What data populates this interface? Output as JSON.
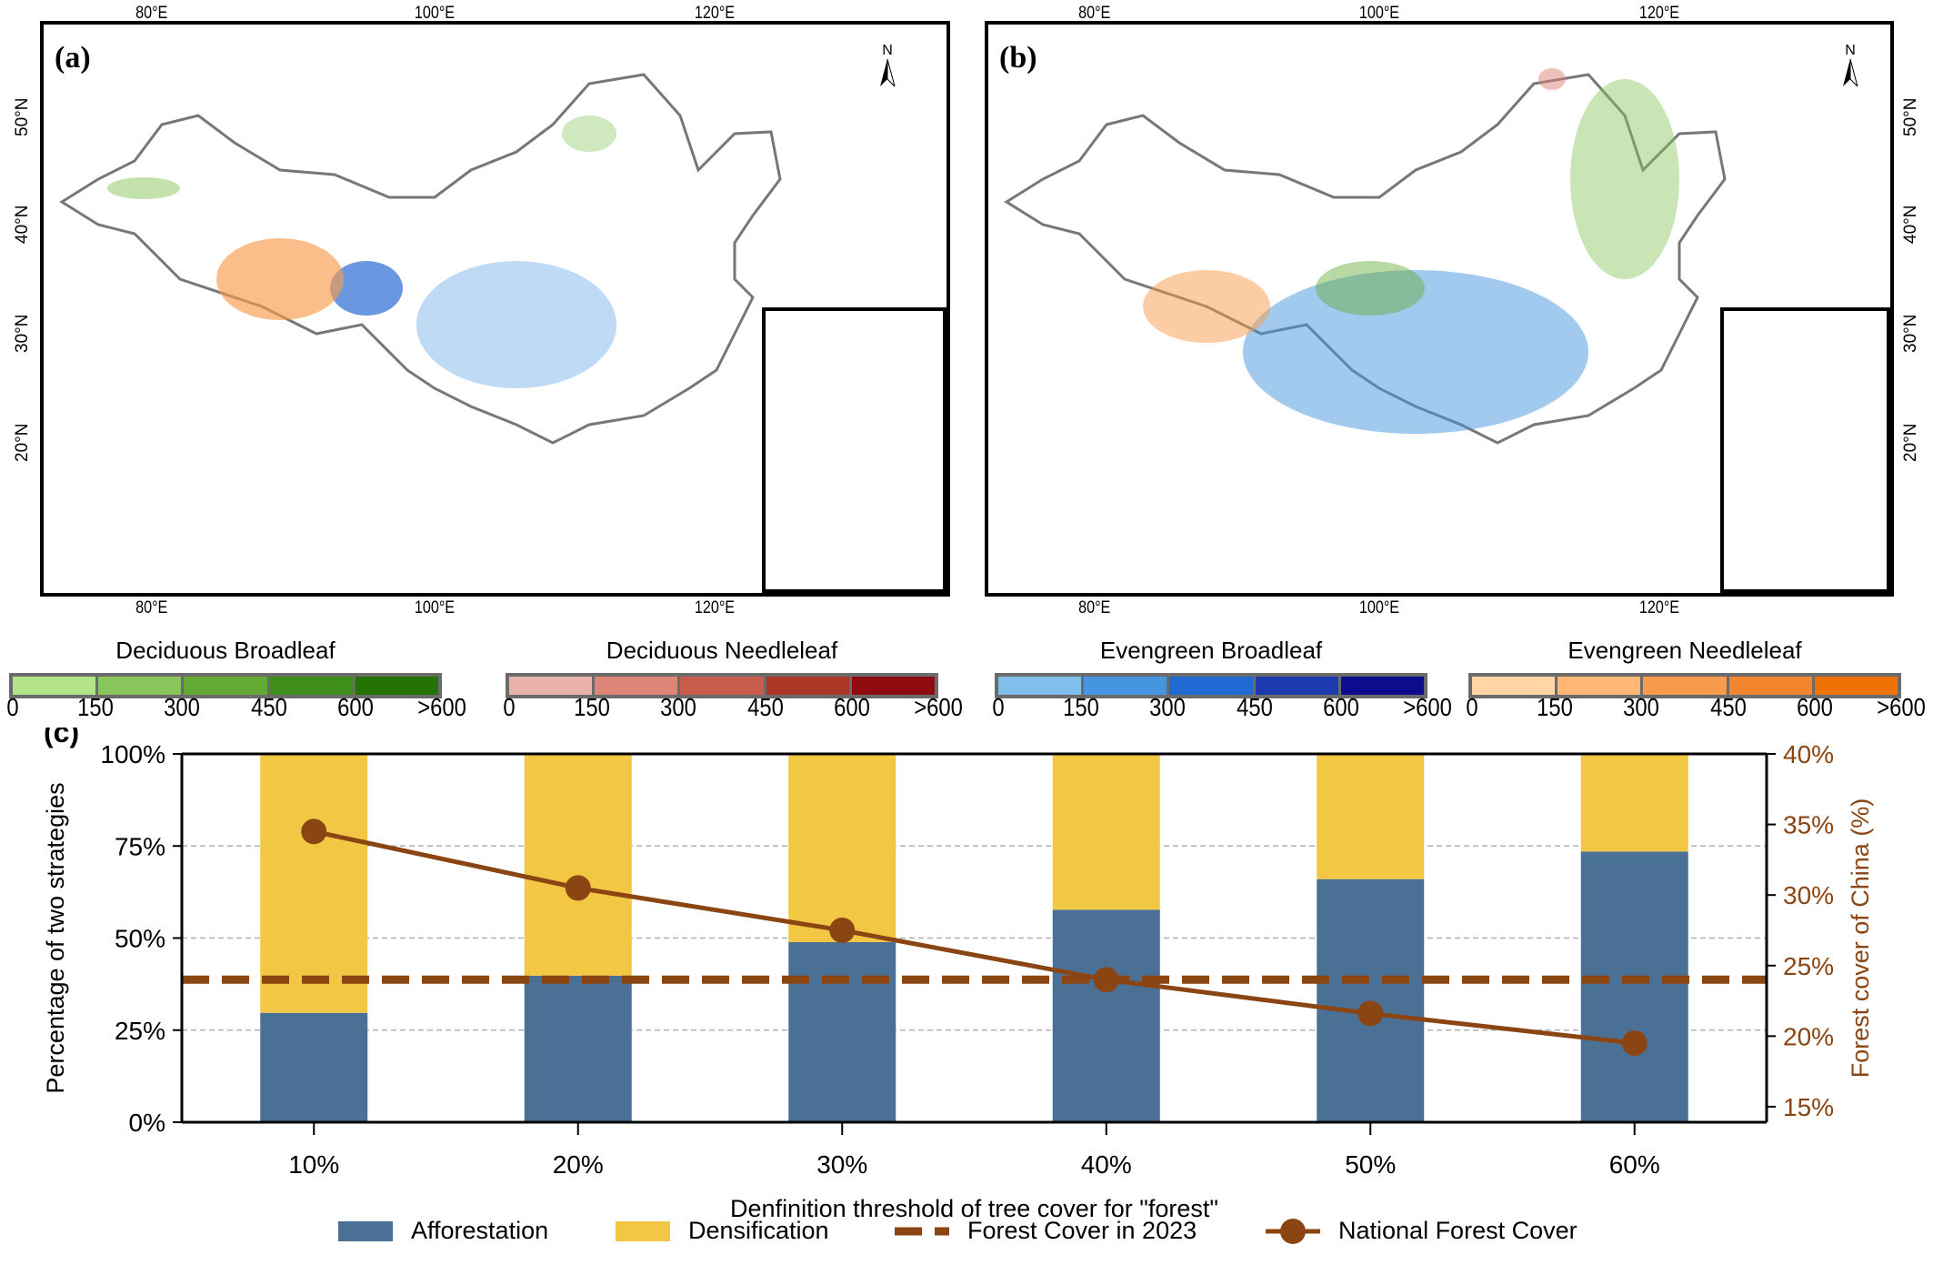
{
  "maps": [
    {
      "panel_label": "(a)",
      "lon_ticks": [
        "80°E",
        "100°E",
        "120°E"
      ],
      "lat_ticks": [
        "50°N",
        "40°N",
        "30°N",
        "20°N"
      ],
      "north_label": "N"
    },
    {
      "panel_label": "(b)",
      "lon_ticks": [
        "80°E",
        "100°E",
        "120°E"
      ],
      "lat_ticks": [
        "50°N",
        "40°N",
        "30°N",
        "20°N"
      ],
      "north_label": "N"
    }
  ],
  "map_legends": [
    {
      "title": "Deciduous Broadleaf",
      "colors": [
        "#b3e38b",
        "#88c55a",
        "#63aa35",
        "#3f8d1a",
        "#257204"
      ],
      "ticks": [
        "0",
        "150",
        "300",
        "450",
        "600",
        ">600"
      ]
    },
    {
      "title": "Deciduous Needleleaf",
      "colors": [
        "#eab3aa",
        "#dd8576",
        "#c85d4b",
        "#ad3726",
        "#8e0c0f"
      ],
      "ticks": [
        "0",
        "150",
        "300",
        "450",
        "600",
        ">600"
      ]
    },
    {
      "title": "Evengreen Broadleaf",
      "colors": [
        "#80bfec",
        "#4695e0",
        "#216ad3",
        "#1d3aae",
        "#0c0c8c"
      ],
      "ticks": [
        "0",
        "150",
        "300",
        "450",
        "600",
        ">600"
      ]
    },
    {
      "title": "Evengreen Needleleaf",
      "colors": [
        "#ffd5a4",
        "#ffb676",
        "#f99b4c",
        "#f4852f",
        "#ef7206"
      ],
      "ticks": [
        "0",
        "150",
        "300",
        "450",
        "600",
        ">600"
      ]
    }
  ],
  "colors": {
    "afforestation": "#4b7096",
    "densification": "#f2c744",
    "forest_line": "#8b4513",
    "right_axis": "#8b4513",
    "grid": "#b0b0b0"
  },
  "chart_data": {
    "type": "bar",
    "panel_label": "(c)",
    "categories": [
      "10%",
      "20%",
      "30%",
      "40%",
      "50%",
      "60%"
    ],
    "xlabel": "Denfinition threshold of tree cover for \"forest\"",
    "ylabel": "Percentage of two strategies",
    "ylabel_right": "Forest cover of China (%)",
    "ylim": [
      0,
      100
    ],
    "ylim_right": [
      13.9,
      40
    ],
    "yticks": [
      "0%",
      "25%",
      "50%",
      "75%",
      "100%"
    ],
    "yticks_right": [
      "15%",
      "20%",
      "25%",
      "30%",
      "35%",
      "40%"
    ],
    "grid": "horizontal dashed at 25%, 50%, 75%",
    "stacked": true,
    "series": [
      {
        "name": "Afforestation",
        "values": [
          29.7,
          39.8,
          48.9,
          57.7,
          66.0,
          73.5
        ]
      },
      {
        "name": "Densification",
        "values": [
          70.3,
          60.2,
          51.1,
          42.3,
          34.0,
          26.5
        ]
      }
    ],
    "line_series": {
      "name": "National Forest Cover",
      "axis": "right",
      "values": [
        34.5,
        30.5,
        27.5,
        24.0,
        21.6,
        19.5
      ]
    },
    "reference_line": {
      "name": "Forest Cover in 2023",
      "axis": "right",
      "value": 24.0
    },
    "legend": [
      "Afforestation",
      "Densification",
      "Forest Cover in 2023",
      "National Forest Cover"
    ],
    "legend_position": "bottom"
  }
}
